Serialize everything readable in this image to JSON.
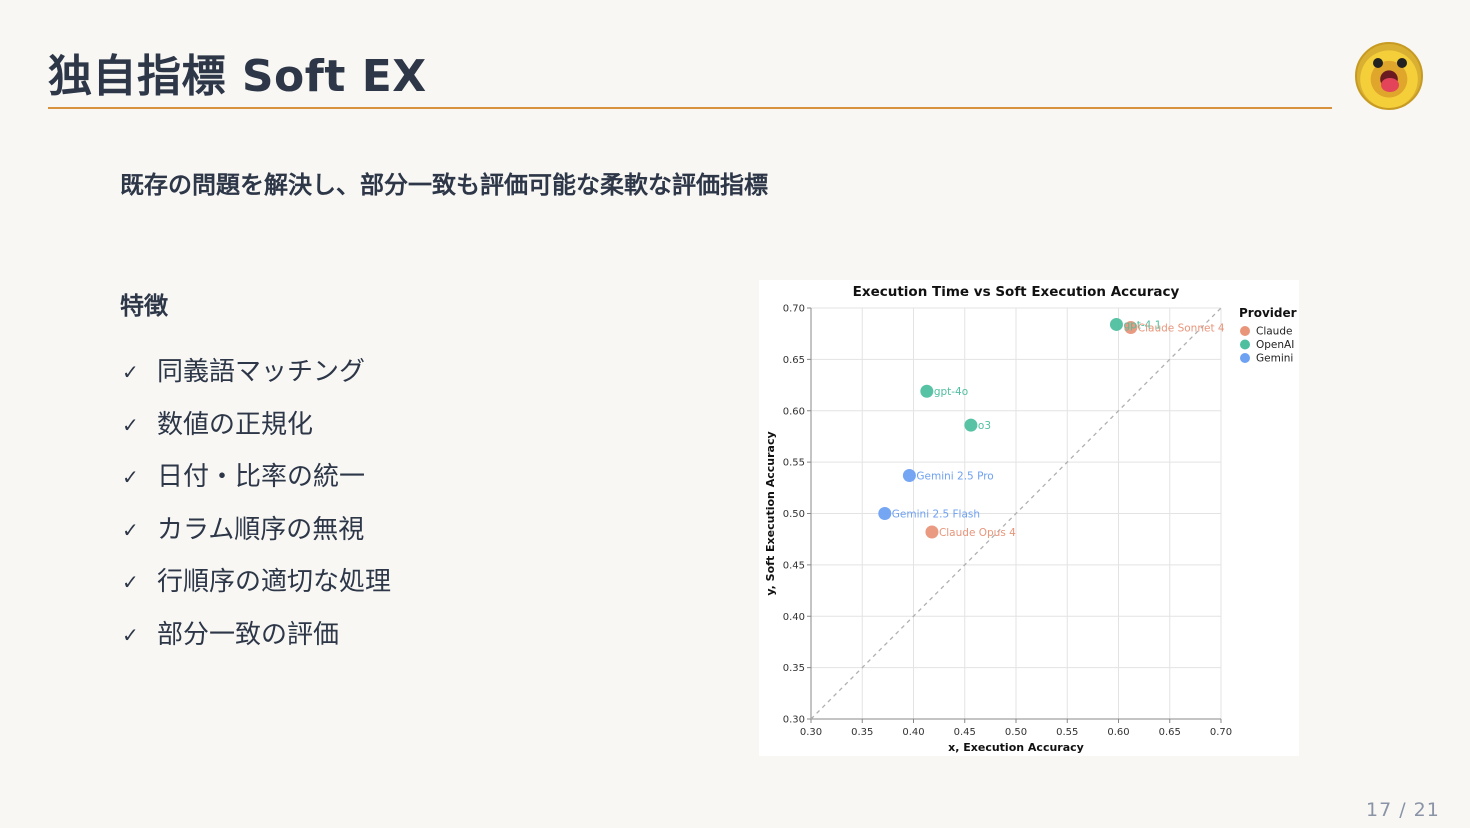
{
  "slide": {
    "title": "独自指標 Soft EX",
    "subtitle": "既存の問題を解決し、部分一致も評価可能な柔軟な評価指標",
    "features_heading": "特徴",
    "check_glyph": "✓",
    "features": [
      "同義語マッチング",
      "数値の正規化",
      "日付・比率の統一",
      "カラム順序の無視",
      "行順序の適切な処理",
      "部分一致の評価"
    ],
    "page_number": "17 / 21",
    "accent_color": "#d9923c",
    "avatar_icon": "avatar"
  },
  "chart_data": {
    "type": "scatter",
    "title": "Execution Time vs Soft Execution Accuracy",
    "xlabel": "x, Execution Accuracy",
    "ylabel": "y, Soft Execution Accuracy",
    "xlim": [
      0.3,
      0.7
    ],
    "ylim": [
      0.3,
      0.7
    ],
    "x_ticks": [
      "0.30",
      "0.35",
      "0.40",
      "0.45",
      "0.50",
      "0.55",
      "0.60",
      "0.65",
      "0.70"
    ],
    "y_ticks": [
      "0.70",
      "0.65",
      "0.60",
      "0.55",
      "0.50",
      "0.45",
      "0.40",
      "0.35",
      "0.30"
    ],
    "grid": true,
    "diagonal_reference_line": true,
    "legend": {
      "title": "Provider",
      "placement": "top-right",
      "entries": [
        {
          "name": "Claude",
          "color": "#e8957a"
        },
        {
          "name": "OpenAI",
          "color": "#4fbf9f"
        },
        {
          "name": "Gemini",
          "color": "#6ea1f2"
        }
      ]
    },
    "points": [
      {
        "label": "gpt-4.1",
        "provider": "OpenAI",
        "x": 0.598,
        "y": 0.684
      },
      {
        "label": "Claude Sonnet 4",
        "provider": "Claude",
        "x": 0.612,
        "y": 0.681
      },
      {
        "label": "gpt-4o",
        "provider": "OpenAI",
        "x": 0.413,
        "y": 0.619
      },
      {
        "label": "o3",
        "provider": "OpenAI",
        "x": 0.456,
        "y": 0.586
      },
      {
        "label": "Gemini 2.5 Pro",
        "provider": "Gemini",
        "x": 0.396,
        "y": 0.537
      },
      {
        "label": "Gemini 2.5 Flash",
        "provider": "Gemini",
        "x": 0.372,
        "y": 0.5
      },
      {
        "label": "Claude Opus 4",
        "provider": "Claude",
        "x": 0.418,
        "y": 0.482
      }
    ]
  }
}
